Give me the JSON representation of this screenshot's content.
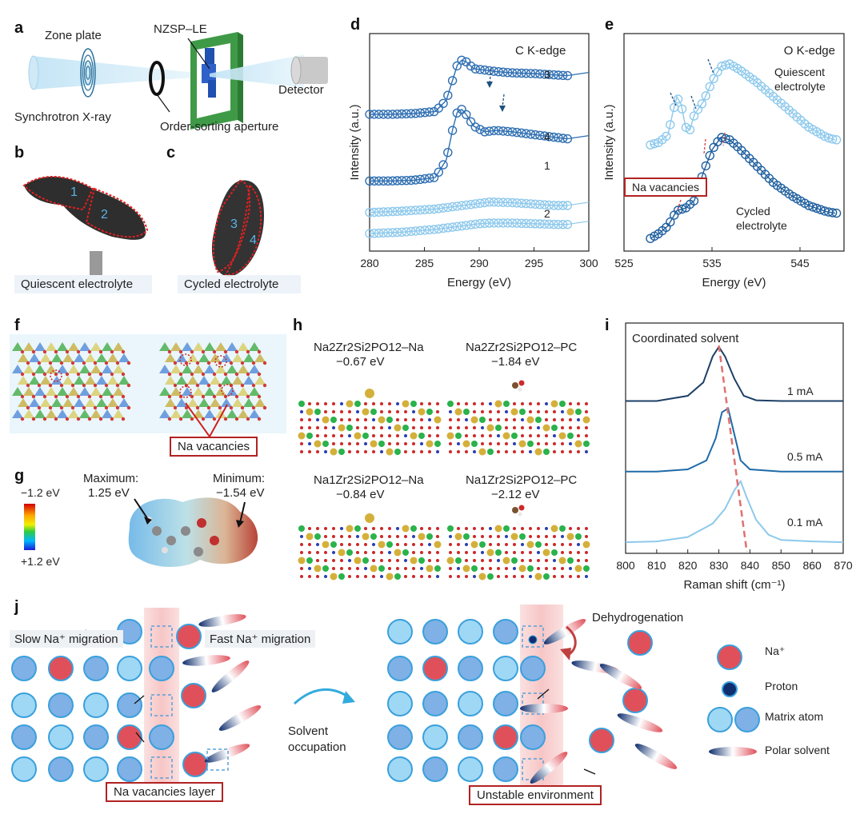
{
  "panel_labels": [
    "a",
    "b",
    "c",
    "d",
    "e",
    "f",
    "g",
    "h",
    "i",
    "j"
  ],
  "panel_a": {
    "zone_plate": "Zone plate",
    "nzsp": "NZSP–LE",
    "detector": "Detector",
    "source": "Synchrotron X-ray",
    "aperture": "Order-sorting aperture"
  },
  "panel_b": {
    "caption": "Quiescent electrolyte",
    "regions": [
      "1",
      "2"
    ]
  },
  "panel_c": {
    "caption": "Cycled electrolyte",
    "regions": [
      "3",
      "4"
    ]
  },
  "panel_e_text": {
    "quiescent": [
      "Quiescent",
      "electrolyte"
    ],
    "cycled": [
      "Cycled",
      "electrolyte"
    ],
    "na_vacancies": "Na vacancies"
  },
  "panel_f": {
    "na_vacancies": "Na vacancies"
  },
  "panel_g": {
    "scale_top": "−1.2 eV",
    "scale_bottom": "+1.2 eV",
    "max_label": "Maximum:",
    "max_value": "1.25 eV",
    "min_label": "Minimum:",
    "min_value": "−1.54 eV"
  },
  "panel_h": {
    "structures": [
      {
        "formula": "Na2Zr2Si2PO12–Na",
        "energy": "−0.67 eV"
      },
      {
        "formula": "Na2Zr2Si2PO12–PC",
        "energy": "−1.84 eV"
      },
      {
        "formula": "Na1Zr2Si2PO12–Na",
        "energy": "−0.84 eV"
      },
      {
        "formula": "Na1Zr2Si2PO12–PC",
        "energy": "−2.12 eV"
      }
    ]
  },
  "panel_j": {
    "slow": "Slow Na⁺ migration",
    "fast": "Fast Na⁺ migration",
    "vac_layer": "Na vacancies layer",
    "solvent_occ": [
      "Solvent",
      "occupation"
    ],
    "dehydro": "Dehydrogenation",
    "unstable": "Unstable environment",
    "legend": [
      "Na⁺",
      "Proton",
      "Matrix atom",
      "Polar solvent"
    ]
  },
  "colors": {
    "dark_blue": "#1f5f9e",
    "light_blue": "#86c5ea",
    "na_red": "#e0505a",
    "highlight": "#f7c6c6"
  },
  "chart_data": [
    {
      "panel": "d",
      "type": "line",
      "title": "C K-edge",
      "xlabel": "Energy (eV)",
      "ylabel": "Intensity (a.u.)",
      "xlim": [
        280,
        300
      ],
      "xticks": [
        280,
        285,
        290,
        295,
        300
      ],
      "series": [
        {
          "name": "3",
          "color": "#2f6fb2",
          "x": [
            280,
            282,
            284,
            286,
            287,
            287.6,
            288,
            288.4,
            288.8,
            289.5,
            290.5,
            291.5,
            293,
            295,
            297,
            298
          ],
          "y": [
            1.95,
            1.95,
            1.96,
            1.99,
            2.15,
            2.45,
            2.65,
            2.72,
            2.7,
            2.6,
            2.58,
            2.56,
            2.54,
            2.53,
            2.51,
            2.5
          ]
        },
        {
          "name": "4",
          "color": "#2f6fb2",
          "x": [
            280,
            282,
            284,
            286,
            287,
            287.6,
            288,
            288.4,
            288.8,
            289.5,
            290.5,
            291.5,
            293,
            295,
            297,
            298
          ],
          "y": [
            1.0,
            1.0,
            1.01,
            1.05,
            1.3,
            1.75,
            1.98,
            2.02,
            1.95,
            1.78,
            1.7,
            1.72,
            1.7,
            1.66,
            1.62,
            1.6
          ]
        },
        {
          "name": "1",
          "color": "#8ec9ec",
          "x": [
            280,
            283,
            286,
            288,
            290,
            291,
            293,
            295,
            297,
            298
          ],
          "y": [
            0.55,
            0.57,
            0.6,
            0.64,
            0.68,
            0.7,
            0.69,
            0.67,
            0.65,
            0.65
          ]
        },
        {
          "name": "2",
          "color": "#8ec9ec",
          "x": [
            280,
            283,
            286,
            288,
            290,
            291,
            293,
            295,
            297,
            298
          ],
          "y": [
            0.25,
            0.27,
            0.31,
            0.35,
            0.39,
            0.4,
            0.4,
            0.39,
            0.38,
            0.38
          ]
        }
      ]
    },
    {
      "panel": "e",
      "type": "line",
      "title": "O K-edge",
      "xlabel": "Energy (eV)",
      "ylabel": "Intensity (a.u.)",
      "xlim": [
        525,
        550
      ],
      "xticks": [
        525,
        535,
        545
      ],
      "series": [
        {
          "name": "Quiescent electrolyte",
          "color": "#8ec9ec",
          "x": [
            528,
            529,
            530,
            530.5,
            531,
            531.5,
            532,
            532.5,
            533,
            534,
            535,
            536,
            537,
            538,
            540,
            542,
            544,
            546,
            548,
            549
          ],
          "y": [
            2.1,
            2.15,
            2.3,
            2.7,
            3.05,
            2.9,
            2.45,
            2.4,
            2.7,
            2.95,
            3.35,
            3.65,
            3.7,
            3.6,
            3.35,
            3.05,
            2.75,
            2.45,
            2.25,
            2.2
          ]
        },
        {
          "name": "Cycled electrolyte",
          "color": "#1f5f9e",
          "x": [
            528,
            529,
            530,
            531,
            532,
            533,
            534,
            535,
            536,
            537,
            538,
            540,
            542,
            544,
            546,
            548,
            549
          ],
          "y": [
            0.25,
            0.35,
            0.5,
            0.8,
            0.85,
            1.0,
            1.55,
            2.0,
            2.25,
            2.2,
            2.05,
            1.7,
            1.35,
            1.1,
            0.9,
            0.78,
            0.75
          ]
        }
      ]
    },
    {
      "panel": "i",
      "type": "line",
      "title": "Coordinated solvent",
      "xlabel": "Raman shift (cm⁻¹)",
      "ylabel": "",
      "xlim": [
        800,
        870
      ],
      "xticks": [
        800,
        810,
        820,
        830,
        840,
        850,
        860,
        870
      ],
      "series": [
        {
          "name": "1 mA",
          "color": "#1c3f66",
          "x": [
            800,
            810,
            820,
            825,
            828,
            830,
            832,
            835,
            838,
            842,
            850,
            860,
            870
          ],
          "y": [
            2.05,
            2.05,
            2.12,
            2.3,
            2.65,
            2.78,
            2.65,
            2.35,
            2.12,
            2.06,
            2.05,
            2.05,
            2.05
          ]
        },
        {
          "name": "0.5 mA",
          "color": "#1f6aa8",
          "x": [
            800,
            810,
            820,
            826,
            829,
            831,
            833,
            835,
            837,
            840,
            850,
            860,
            870
          ],
          "y": [
            1.1,
            1.1,
            1.13,
            1.25,
            1.55,
            1.9,
            1.95,
            1.6,
            1.25,
            1.13,
            1.1,
            1.1,
            1.1
          ]
        },
        {
          "name": "0.1 mA",
          "color": "#8ec9ec",
          "x": [
            800,
            810,
            820,
            828,
            832,
            835,
            837,
            839,
            842,
            846,
            850,
            860,
            870
          ],
          "y": [
            0.15,
            0.16,
            0.22,
            0.4,
            0.6,
            0.85,
            0.97,
            0.75,
            0.45,
            0.25,
            0.18,
            0.16,
            0.15
          ]
        }
      ],
      "trend_line": {
        "x": [
          830,
          839
        ],
        "color": "#e07070"
      }
    }
  ]
}
